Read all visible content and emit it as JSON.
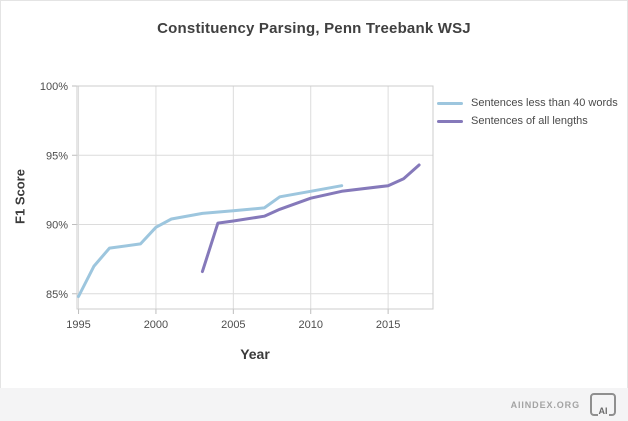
{
  "chart_data": {
    "type": "line",
    "title": "Constituency Parsing, Penn Treebank WSJ",
    "xlabel": "Year",
    "ylabel": "F1 Score",
    "x_ticks": [
      1995,
      2000,
      2005,
      2010,
      2015
    ],
    "y_ticks": [
      85,
      90,
      95,
      100
    ],
    "y_tick_suffix": "%",
    "xlim": [
      1994.9,
      2017.9
    ],
    "ylim": [
      83.9,
      100
    ],
    "grid": true,
    "legend_position": "right-of-plot-top",
    "series": [
      {
        "name": "Sentences less than 40 words",
        "color": "#9dc6de",
        "points": [
          [
            1995,
            84.8
          ],
          [
            1996,
            87.0
          ],
          [
            1997,
            88.3
          ],
          [
            1999,
            88.6
          ],
          [
            2000,
            89.8
          ],
          [
            2001,
            90.4
          ],
          [
            2003,
            90.8
          ],
          [
            2005,
            91.0
          ],
          [
            2007,
            91.2
          ],
          [
            2008,
            92.0
          ],
          [
            2010,
            92.4
          ],
          [
            2012,
            92.8
          ]
        ]
      },
      {
        "name": "Sentences of all lengths",
        "color": "#8579ba",
        "points": [
          [
            2003,
            86.6
          ],
          [
            2004,
            90.1
          ],
          [
            2005,
            90.25
          ],
          [
            2007,
            90.6
          ],
          [
            2008,
            91.1
          ],
          [
            2010,
            91.9
          ],
          [
            2012,
            92.4
          ],
          [
            2015,
            92.8
          ],
          [
            2016,
            93.3
          ],
          [
            2017,
            94.3
          ]
        ]
      }
    ]
  },
  "footer": {
    "source": "AIINDEX.ORG",
    "logo_text": "AI"
  }
}
